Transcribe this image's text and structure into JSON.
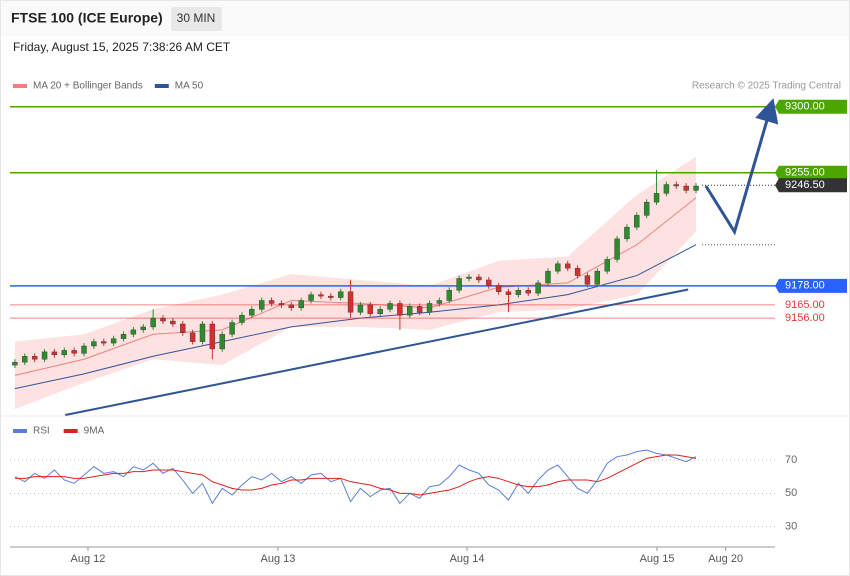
{
  "header": {
    "title": "FTSE 100 (ICE Europe)",
    "timeframe": "30 MIN",
    "date": "Friday, August 15, 2025 7:38:26 AM CET",
    "credit": "Research © 2025 Trading Central"
  },
  "chart_data": [
    {
      "type": "candlestick",
      "xlim": [
        -0.5,
        77
      ],
      "ylim": [
        9090,
        9308
      ],
      "up_color": "#2e8b2e",
      "down_color": "#d32f2f",
      "x": [
        0,
        1,
        2,
        3,
        4,
        5,
        6,
        7,
        8,
        9,
        10,
        11,
        12,
        13,
        14,
        15,
        16,
        17,
        18,
        19,
        20,
        21,
        22,
        23,
        24,
        25,
        26,
        27,
        28,
        29,
        30,
        31,
        32,
        33,
        34,
        35,
        36,
        37,
        38,
        39,
        40,
        41,
        42,
        43,
        44,
        45,
        46,
        47,
        48,
        49,
        50,
        51,
        52,
        53,
        54,
        55,
        56,
        57,
        58,
        59,
        60,
        61,
        62,
        63,
        64,
        65,
        66,
        67,
        68,
        69
      ],
      "open": [
        9124,
        9126,
        9130,
        9128,
        9133,
        9131,
        9134,
        9132,
        9137,
        9140,
        9139,
        9142,
        9145,
        9148,
        9150,
        9156,
        9154,
        9152,
        9146,
        9140,
        9152,
        9135,
        9145,
        9153,
        9158,
        9162,
        9168,
        9166,
        9165,
        9163,
        9168,
        9172,
        9171,
        9170,
        9174,
        9160,
        9165,
        9159,
        9162,
        9166,
        9158,
        9164,
        9160,
        9166,
        9168,
        9175,
        9183,
        9184,
        9182,
        9178,
        9174,
        9172,
        9175,
        9173,
        9180,
        9188,
        9193,
        9190,
        9185,
        9179,
        9188,
        9196,
        9210,
        9218,
        9226,
        9235,
        9241,
        9247,
        9246,
        9243
      ],
      "high": [
        9128,
        9132,
        9132,
        9135,
        9135,
        9136,
        9136,
        9139,
        9142,
        9142,
        9144,
        9147,
        9150,
        9152,
        9162,
        9158,
        9156,
        9154,
        9148,
        9154,
        9154,
        9147,
        9155,
        9160,
        9164,
        9170,
        9170,
        9168,
        9167,
        9170,
        9174,
        9174,
        9173,
        9176,
        9182,
        9167,
        9167,
        9164,
        9168,
        9168,
        9166,
        9166,
        9168,
        9170,
        9177,
        9185,
        9186,
        9186,
        9184,
        9180,
        9176,
        9177,
        9177,
        9182,
        9190,
        9195,
        9195,
        9192,
        9187,
        9190,
        9198,
        9212,
        9220,
        9228,
        9237,
        9257,
        9249,
        9249,
        9248,
        9248
      ],
      "low": [
        9122,
        9124,
        9126,
        9126,
        9129,
        9129,
        9130,
        9130,
        9135,
        9137,
        9137,
        9140,
        9143,
        9146,
        9148,
        9152,
        9150,
        9144,
        9138,
        9138,
        9128,
        9133,
        9143,
        9151,
        9156,
        9160,
        9164,
        9163,
        9161,
        9161,
        9166,
        9169,
        9168,
        9168,
        9156,
        9158,
        9157,
        9157,
        9160,
        9148,
        9156,
        9158,
        9158,
        9164,
        9166,
        9173,
        9181,
        9180,
        9176,
        9172,
        9160,
        9170,
        9171,
        9171,
        9178,
        9186,
        9188,
        9183,
        9177,
        9177,
        9186,
        9194,
        9208,
        9216,
        9224,
        9233,
        9239,
        9244,
        9241,
        9241
      ],
      "close": [
        9126,
        9130,
        9128,
        9133,
        9131,
        9134,
        9132,
        9137,
        9140,
        9139,
        9142,
        9145,
        9148,
        9150,
        9156,
        9154,
        9152,
        9146,
        9140,
        9152,
        9135,
        9145,
        9153,
        9158,
        9162,
        9168,
        9166,
        9165,
        9163,
        9168,
        9172,
        9171,
        9170,
        9174,
        9160,
        9165,
        9159,
        9162,
        9166,
        9158,
        9164,
        9160,
        9166,
        9168,
        9175,
        9183,
        9184,
        9182,
        9178,
        9174,
        9172,
        9175,
        9173,
        9180,
        9188,
        9193,
        9190,
        9185,
        9179,
        9188,
        9196,
        9210,
        9218,
        9226,
        9235,
        9241,
        9247,
        9246,
        9243,
        9246
      ],
      "overlays": [
        {
          "name": "MA 20 + Bollinger Bands",
          "color": "#f08080",
          "band_color": "#fdd5d5",
          "x": [
            0,
            7,
            14,
            21,
            28,
            35,
            42,
            49,
            56,
            63,
            69
          ],
          "values": [
            9117,
            9128,
            9145,
            9148,
            9168,
            9166,
            9163,
            9177,
            9180,
            9206,
            9238
          ],
          "upper": [
            9140,
            9145,
            9162,
            9172,
            9186,
            9182,
            9178,
            9195,
            9198,
            9240,
            9266
          ],
          "lower": [
            9094,
            9112,
            9128,
            9124,
            9150,
            9150,
            9148,
            9160,
            9162,
            9172,
            9215
          ]
        },
        {
          "name": "MA 50",
          "color": "#2f5597",
          "x": [
            0,
            7,
            14,
            21,
            28,
            35,
            42,
            49,
            56,
            63,
            69
          ],
          "values": [
            9108,
            9118,
            9130,
            9140,
            9150,
            9156,
            9160,
            9165,
            9172,
            9185,
            9206
          ]
        }
      ],
      "levels": [
        {
          "value": 9300,
          "label": "9300.00",
          "color": "#4ca600",
          "style": "box",
          "line": "solid"
        },
        {
          "value": 9255,
          "label": "9255.00",
          "color": "#4ca600",
          "style": "box",
          "line": "solid"
        },
        {
          "value": 9246.5,
          "label": "9246.50",
          "color": "#333333",
          "style": "box",
          "line": "dotted"
        },
        {
          "value": 9178,
          "label": "9178.00",
          "color": "#2962ff",
          "style": "box",
          "line": "solid"
        },
        {
          "value": 9165,
          "label": "9165.00",
          "color": "#e53935",
          "style": "text",
          "line": "thin"
        },
        {
          "value": 9156,
          "label": "9156.00",
          "color": "#e53935",
          "style": "text",
          "line": "thin"
        }
      ],
      "marker_lines": [
        9206
      ],
      "trendline": {
        "color": "#2f5597",
        "x": [
          5.1,
          68.2
        ],
        "values": [
          9090,
          9175.5
        ]
      },
      "projection": {
        "color": "#2f5597",
        "x": [
          70,
          72.9,
          76.5
        ],
        "values": [
          9246,
          9214.8,
          9298
        ]
      }
    },
    {
      "type": "line",
      "xlim": [
        -0.5,
        77
      ],
      "ylim": [
        19,
        94
      ],
      "yticks": [
        70,
        50,
        30
      ],
      "xticks": [
        {
          "value": 7.4,
          "label": "Aug 12"
        },
        {
          "value": 26.65,
          "label": "Aug 13"
        },
        {
          "value": 45.8,
          "label": "Aug 14"
        },
        {
          "value": 65.05,
          "label": "Aug 15"
        },
        {
          "value": 72.0,
          "label": "Aug 20"
        }
      ],
      "x": [
        0,
        1,
        2,
        3,
        4,
        5,
        6,
        7,
        8,
        9,
        10,
        11,
        12,
        13,
        14,
        15,
        16,
        17,
        18,
        19,
        20,
        21,
        22,
        23,
        24,
        25,
        26,
        27,
        28,
        29,
        30,
        31,
        32,
        33,
        34,
        35,
        36,
        37,
        38,
        39,
        40,
        41,
        42,
        43,
        44,
        45,
        46,
        47,
        48,
        49,
        50,
        51,
        52,
        53,
        54,
        55,
        56,
        57,
        58,
        59,
        60,
        61,
        62,
        63,
        64,
        65,
        66,
        67,
        68,
        69
      ],
      "series": [
        {
          "name": "RSI",
          "color": "#5b7fd6",
          "values": [
            60,
            57,
            62,
            59,
            64,
            58,
            56,
            61,
            66,
            62,
            63,
            60,
            66,
            64,
            68,
            62,
            65,
            58,
            50,
            56,
            44,
            53,
            49,
            55,
            60,
            58,
            62,
            57,
            60,
            56,
            61,
            62,
            57,
            59,
            45,
            53,
            48,
            52,
            53,
            44,
            50,
            47,
            54,
            55,
            60,
            67,
            64,
            62,
            55,
            52,
            46,
            56,
            50,
            58,
            64,
            67,
            60,
            53,
            50,
            58,
            68,
            72,
            73,
            75,
            76,
            74,
            73,
            71,
            69,
            72
          ]
        },
        {
          "name": "9MA",
          "color": "#e02020",
          "values": [
            59,
            59,
            60,
            60,
            60,
            60,
            59,
            59,
            60,
            61,
            62,
            62,
            63,
            63,
            64,
            64,
            64,
            63,
            62,
            61,
            57,
            55,
            53,
            52,
            52,
            53,
            55,
            56,
            58,
            58,
            59,
            59,
            59,
            59,
            57,
            56,
            55,
            53,
            52,
            50,
            50,
            49,
            50,
            51,
            52,
            54,
            57,
            59,
            60,
            59,
            57,
            55,
            54,
            54,
            55,
            57,
            58,
            58,
            58,
            57,
            59,
            62,
            65,
            68,
            71,
            72,
            73,
            73,
            72,
            71
          ]
        }
      ]
    }
  ]
}
